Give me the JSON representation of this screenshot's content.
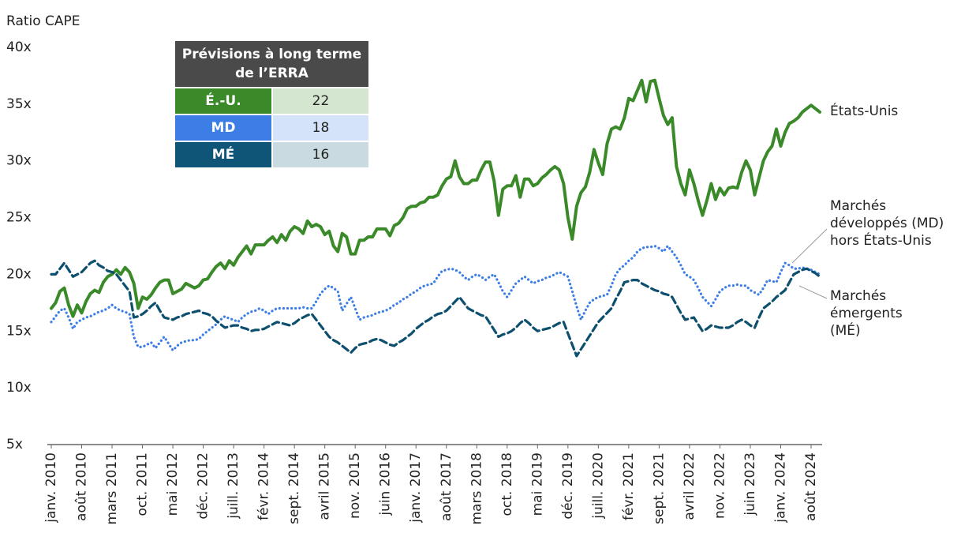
{
  "chart_data": {
    "type": "line",
    "y_axis_label": "Ratio CAPE",
    "ylim": [
      5,
      40
    ],
    "yticks": [
      {
        "value": 5,
        "label": "5x"
      },
      {
        "value": 10,
        "label": "10x"
      },
      {
        "value": 15,
        "label": "15x"
      },
      {
        "value": 20,
        "label": "20x"
      },
      {
        "value": 25,
        "label": "25x"
      },
      {
        "value": 30,
        "label": "30x"
      },
      {
        "value": 35,
        "label": "35x"
      },
      {
        "value": 40,
        "label": "40x"
      }
    ],
    "grid": false,
    "categories": [
      "janv. 2010",
      null,
      null,
      null,
      null,
      null,
      null,
      "août 2010",
      null,
      null,
      null,
      null,
      null,
      null,
      "mars 2011",
      null,
      null,
      null,
      null,
      null,
      null,
      "oct. 2011",
      null,
      null,
      null,
      null,
      null,
      null,
      "mai 2012",
      null,
      null,
      null,
      null,
      null,
      null,
      "déc. 2012",
      null,
      null,
      null,
      null,
      null,
      null,
      "juill. 2013",
      null,
      null,
      null,
      null,
      null,
      null,
      "févr. 2014",
      null,
      null,
      null,
      null,
      null,
      null,
      "sept. 2014",
      null,
      null,
      null,
      null,
      null,
      null,
      "avril 2015",
      null,
      null,
      null,
      null,
      null,
      null,
      "nov. 2015",
      null,
      null,
      null,
      null,
      null,
      null,
      "juin 2016",
      null,
      null,
      null,
      null,
      null,
      null,
      "janv. 2017",
      null,
      null,
      null,
      null,
      null,
      null,
      "août 2017",
      null,
      null,
      null,
      null,
      null,
      null,
      "mars 2018",
      null,
      null,
      null,
      null,
      null,
      null,
      "oct. 2018",
      null,
      null,
      null,
      null,
      null,
      null,
      "mai 2019",
      null,
      null,
      null,
      null,
      null,
      null,
      "déc. 2019",
      null,
      null,
      null,
      null,
      null,
      null,
      "juill. 2020",
      null,
      null,
      null,
      null,
      null,
      null,
      "févr. 2021",
      null,
      null,
      null,
      null,
      null,
      null,
      "sept. 2021",
      null,
      null,
      null,
      null,
      null,
      null,
      "avril 2022",
      null,
      null,
      null,
      null,
      null,
      null,
      "nov. 2022",
      null,
      null,
      null,
      null,
      null,
      null,
      "juin 2023",
      null,
      null,
      null,
      null,
      null,
      null,
      "janv. 2024",
      null,
      null,
      null,
      null,
      null,
      null,
      "août 2024",
      null,
      null
    ],
    "series": [
      {
        "name": "États-Unis",
        "color": "#3a8a2a",
        "style": "solid",
        "values": [
          17.0,
          17.5,
          18.5,
          18.8,
          17.3,
          16.3,
          17.3,
          16.6,
          17.6,
          18.3,
          18.6,
          18.4,
          19.3,
          19.8,
          20.0,
          20.4,
          20.0,
          20.6,
          20.2,
          19.2,
          17.0,
          18.0,
          17.8,
          18.2,
          18.8,
          19.3,
          19.5,
          19.5,
          18.3,
          18.5,
          18.7,
          19.2,
          19.0,
          18.8,
          19.0,
          19.5,
          19.6,
          20.2,
          20.7,
          21.0,
          20.5,
          21.2,
          20.8,
          21.5,
          22.0,
          22.5,
          21.8,
          22.6,
          22.6,
          22.6,
          23.0,
          23.3,
          22.8,
          23.5,
          23.0,
          23.8,
          24.2,
          24.0,
          23.6,
          24.7,
          24.2,
          24.4,
          24.2,
          23.5,
          23.8,
          22.5,
          22.0,
          23.6,
          23.3,
          21.8,
          21.8,
          23.0,
          23.0,
          23.3,
          23.3,
          24.0,
          24.0,
          24.0,
          23.4,
          24.3,
          24.5,
          25.0,
          25.8,
          26.0,
          26.0,
          26.3,
          26.4,
          26.8,
          26.8,
          27.0,
          27.8,
          28.4,
          28.6,
          30.0,
          28.6,
          28.0,
          28.0,
          28.3,
          28.3,
          29.2,
          29.9,
          29.9,
          28.2,
          25.2,
          27.5,
          27.8,
          27.8,
          28.7,
          26.8,
          28.4,
          28.4,
          27.8,
          28.0,
          28.5,
          28.8,
          29.2,
          29.5,
          29.2,
          28.0,
          25.0,
          23.1,
          26.0,
          27.2,
          27.7,
          29.0,
          31.0,
          29.8,
          28.8,
          31.5,
          32.8,
          33.0,
          32.8,
          33.8,
          35.5,
          35.3,
          36.2,
          37.1,
          35.2,
          37.0,
          37.1,
          35.5,
          34.0,
          33.2,
          33.8,
          29.5,
          28.0,
          27.0,
          29.2,
          28.0,
          26.5,
          25.2,
          26.5,
          28.0,
          26.6,
          27.6,
          27.0,
          27.6,
          27.7,
          27.6,
          29.0,
          30.0,
          29.2,
          27.0,
          28.5,
          30.0,
          30.8,
          31.3,
          32.8,
          31.3,
          32.5,
          33.3,
          33.5,
          33.8,
          34.3,
          34.6,
          34.9,
          34.6,
          34.3
        ]
      },
      {
        "name": "Marchés développés (MD) hors États-Unis",
        "color": "#3d7ee6",
        "style": "dotted",
        "values": [
          15.8,
          16.3,
          16.8,
          17.0,
          16.2,
          15.2,
          15.8,
          16.0,
          16.2,
          16.3,
          16.5,
          16.7,
          16.8,
          17.0,
          17.3,
          17.0,
          16.8,
          16.7,
          16.5,
          14.5,
          13.6,
          13.6,
          13.8,
          14.0,
          13.5,
          14.0,
          14.5,
          13.9,
          13.3,
          13.7,
          14.0,
          14.1,
          14.2,
          14.2,
          14.3,
          14.7,
          15.0,
          15.3,
          15.6,
          16.0,
          16.3,
          16.1,
          16.0,
          15.8,
          16.2,
          16.5,
          16.7,
          16.8,
          17.0,
          16.8,
          16.5,
          16.8,
          17.0,
          17.0,
          17.0,
          17.0,
          17.0,
          17.0,
          17.1,
          17.0,
          17.0,
          17.6,
          18.3,
          18.7,
          19.0,
          18.8,
          18.5,
          16.8,
          17.4,
          18.0,
          17.0,
          16.0,
          16.2,
          16.3,
          16.4,
          16.6,
          16.7,
          16.8,
          17.0,
          17.3,
          17.5,
          17.8,
          18.0,
          18.3,
          18.5,
          18.8,
          19.0,
          19.1,
          19.2,
          19.8,
          20.3,
          20.4,
          20.5,
          20.4,
          20.2,
          19.8,
          19.5,
          19.8,
          20.0,
          19.8,
          19.5,
          19.8,
          20.0,
          19.3,
          18.5,
          18.0,
          18.6,
          19.2,
          19.5,
          19.8,
          19.5,
          19.2,
          19.4,
          19.5,
          19.7,
          19.8,
          20.0,
          20.2,
          20.0,
          19.8,
          18.5,
          17.2,
          16.0,
          16.8,
          17.5,
          17.8,
          18.0,
          18.1,
          18.2,
          19.0,
          20.0,
          20.5,
          20.8,
          21.2,
          21.5,
          22.0,
          22.3,
          22.4,
          22.4,
          22.5,
          22.3,
          22.0,
          22.5,
          22.0,
          21.5,
          20.8,
          20.0,
          19.8,
          19.5,
          18.8,
          18.0,
          17.6,
          17.2,
          17.8,
          18.5,
          18.8,
          19.0,
          19.0,
          19.1,
          19.0,
          19.0,
          18.6,
          18.4,
          18.2,
          18.8,
          19.5,
          19.4,
          19.3,
          20.2,
          21.0,
          20.8,
          20.5,
          20.5,
          20.6,
          20.5,
          20.4,
          20.2,
          20.0
        ]
      },
      {
        "name": "Marchés émergents (MÉ)",
        "color": "#0d4f6e",
        "style": "dashed",
        "values": [
          20.0,
          20.0,
          20.5,
          21.0,
          20.4,
          19.8,
          20.0,
          20.2,
          20.6,
          21.0,
          21.2,
          20.8,
          20.6,
          20.3,
          20.2,
          20.0,
          19.5,
          19.0,
          18.5,
          16.2,
          16.3,
          16.5,
          16.8,
          17.2,
          17.5,
          16.8,
          16.2,
          16.1,
          16.0,
          16.2,
          16.3,
          16.5,
          16.6,
          16.7,
          16.8,
          16.6,
          16.5,
          16.3,
          15.9,
          15.6,
          15.3,
          15.4,
          15.5,
          15.5,
          15.3,
          15.2,
          15.0,
          15.1,
          15.1,
          15.2,
          15.4,
          15.6,
          15.8,
          15.7,
          15.6,
          15.5,
          15.7,
          16.0,
          16.2,
          16.4,
          16.5,
          16.0,
          15.5,
          15.0,
          14.5,
          14.2,
          14.0,
          13.7,
          13.4,
          13.1,
          13.5,
          13.8,
          13.9,
          14.0,
          14.2,
          14.3,
          14.2,
          14.0,
          13.8,
          13.7,
          14.0,
          14.2,
          14.5,
          14.8,
          15.2,
          15.5,
          15.8,
          16.0,
          16.3,
          16.5,
          16.6,
          16.8,
          17.2,
          17.6,
          18.0,
          17.5,
          17.0,
          16.8,
          16.6,
          16.4,
          16.3,
          15.7,
          15.1,
          14.5,
          14.7,
          14.8,
          15.0,
          15.3,
          15.7,
          16.0,
          15.7,
          15.3,
          15.0,
          15.1,
          15.2,
          15.3,
          15.5,
          15.7,
          15.8,
          14.8,
          13.8,
          12.8,
          13.4,
          14.0,
          14.6,
          15.2,
          15.8,
          16.2,
          16.6,
          17.0,
          17.8,
          18.5,
          19.3,
          19.4,
          19.5,
          19.5,
          19.2,
          19.0,
          18.8,
          18.6,
          18.5,
          18.3,
          18.2,
          18.0,
          17.3,
          16.6,
          16.0,
          16.1,
          16.2,
          15.6,
          15.0,
          15.2,
          15.5,
          15.4,
          15.3,
          15.3,
          15.3,
          15.5,
          15.8,
          16.0,
          15.8,
          15.5,
          15.3,
          16.2,
          17.0,
          17.3,
          17.6,
          18.0,
          18.3,
          18.6,
          19.3,
          20.0,
          20.2,
          20.4,
          20.5,
          20.3,
          20.1,
          19.8
        ]
      }
    ],
    "forecast_table": {
      "title": "Prévisions à long terme de l’ERRA",
      "rows": [
        {
          "label": "É.-U.",
          "value": 22,
          "color": "#3a8a2a"
        },
        {
          "label": "MD",
          "value": 18,
          "color": "#3d7ee6"
        },
        {
          "label": "MÉ",
          "value": 16,
          "color": "#0f5577"
        }
      ]
    }
  }
}
